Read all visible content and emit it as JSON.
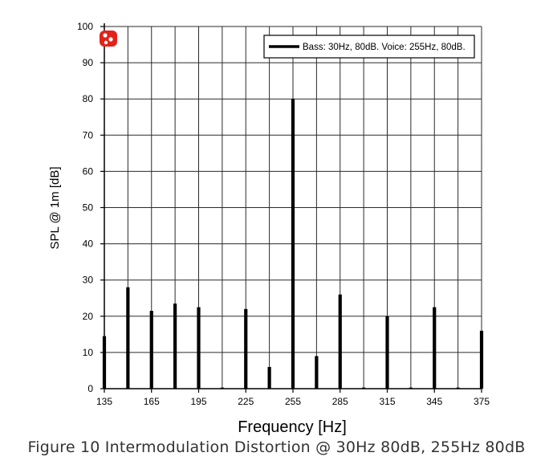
{
  "caption": "Figure 10 Intermodulation Distortion @ 30Hz 80dB, 255Hz 80dB",
  "chart_data": {
    "type": "bar",
    "xlabel": "Frequency [Hz]",
    "ylabel": "SPL @ 1m [dB]",
    "xlim": [
      135,
      375
    ],
    "ylim": [
      0,
      100
    ],
    "x_ticks": [
      135,
      165,
      195,
      225,
      255,
      285,
      315,
      345,
      375
    ],
    "x_tick_labels": [
      "135",
      "165",
      "195",
      "225",
      "255",
      "285",
      "315",
      "345",
      "375"
    ],
    "y_ticks": [
      0,
      10,
      20,
      30,
      40,
      50,
      60,
      70,
      80,
      90,
      100
    ],
    "y_tick_labels": [
      "0",
      "10",
      "20",
      "30",
      "40",
      "50",
      "60",
      "70",
      "80",
      "90",
      "100"
    ],
    "grid": true,
    "legend_position": "top-right",
    "series": [
      {
        "name": "Bass: 30Hz, 80dB. Voice: 255Hz, 80dB.",
        "color": "#000000",
        "x": [
          135,
          150,
          165,
          180,
          195,
          210,
          225,
          240,
          255,
          270,
          285,
          300,
          315,
          330,
          345,
          360,
          375
        ],
        "values": [
          14.5,
          28,
          21.5,
          23.5,
          22.5,
          0.3,
          22,
          6,
          80,
          9,
          26,
          0.3,
          20,
          0.3,
          22.5,
          0.3,
          16
        ]
      }
    ]
  },
  "logo": {
    "color": "#e2231a",
    "icon": "brand-logo-icon"
  }
}
